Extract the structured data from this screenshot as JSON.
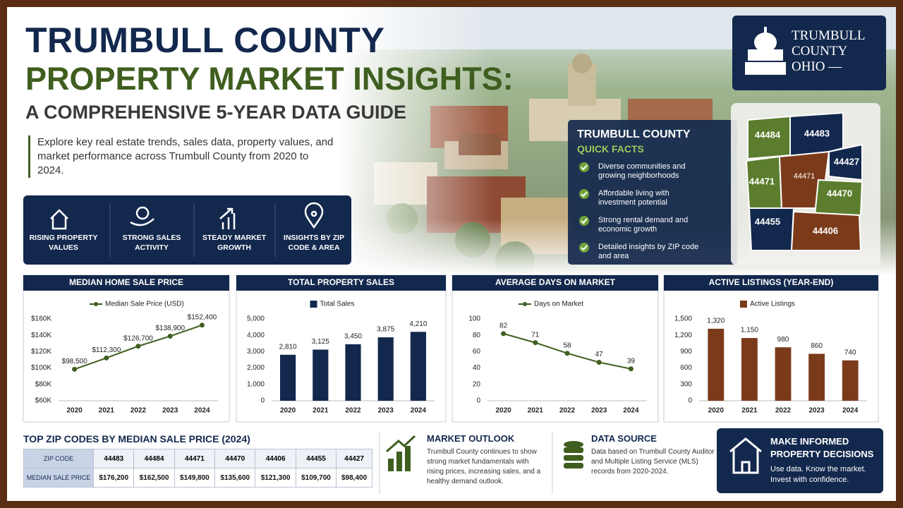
{
  "header": {
    "title_line1": "TRUMBULL COUNTY",
    "title_line2": "PROPERTY MARKET INSIGHTS:",
    "subtitle": "A COMPREHENSIVE 5-YEAR DATA GUIDE",
    "intro": "Explore key real estate trends, sales data, property values, and market performance across Trumbull County from 2020 to 2024."
  },
  "logo": {
    "line1": "TRUMBULL",
    "line2": "COUNTY",
    "line3": "OHIO —"
  },
  "features": [
    "RISING PROPERTY VALUES",
    "STRONG SALES ACTIVITY",
    "STEADY MARKET GROWTH",
    "INSIGHTS BY ZIP CODE & AREA"
  ],
  "quick_facts": {
    "title": "TRUMBULL COUNTY",
    "subtitle": "QUICK FACTS",
    "items": [
      "Diverse communities and growing neighborhoods",
      "Affordable living with investment potential",
      "Strong rental demand and economic growth",
      "Detailed insights by ZIP code and area"
    ]
  },
  "map": {
    "zip_labels": [
      "44484",
      "44483",
      "44427",
      "44471",
      "44471",
      "44470",
      "44455",
      "44406"
    ]
  },
  "chart_data": [
    {
      "type": "line",
      "title": "MEDIAN HOME SALE PRICE",
      "categories": [
        "2020",
        "2021",
        "2022",
        "2023",
        "2024"
      ],
      "series": [
        {
          "name": "Median Sale Price (USD)",
          "color": "#3f5e1f",
          "values": [
            98500,
            112300,
            126700,
            138900,
            152400
          ],
          "value_labels": [
            "$98,500",
            "$112,300",
            "$126,700",
            "$138,900",
            "$152,400"
          ]
        }
      ],
      "ylim": [
        60000,
        160000
      ],
      "yticks": [
        {
          "value": 60000,
          "label": "$60K"
        },
        {
          "value": 80000,
          "label": "$80K"
        },
        {
          "value": 100000,
          "label": "$100K"
        },
        {
          "value": 120000,
          "label": "$120K"
        },
        {
          "value": 140000,
          "label": "$140K"
        },
        {
          "value": 160000,
          "label": "$160K"
        }
      ]
    },
    {
      "type": "bar",
      "title": "TOTAL PROPERTY SALES",
      "categories": [
        "2020",
        "2021",
        "2022",
        "2023",
        "2024"
      ],
      "series": [
        {
          "name": "Total Sales",
          "color": "#13284d",
          "values": [
            2810,
            3125,
            3450,
            3875,
            4210
          ],
          "value_labels": [
            "2,810",
            "3,125",
            "3,450",
            "3,875",
            "4,210"
          ]
        }
      ],
      "ylim": [
        0,
        5000
      ],
      "yticks": [
        0,
        {
          "value": 1000,
          "label": "1,000"
        },
        {
          "value": 2000,
          "label": "2,000"
        },
        {
          "value": 3000,
          "label": "3,000"
        },
        {
          "value": 4000,
          "label": "4,000"
        },
        {
          "value": 5000,
          "label": "5,000"
        }
      ]
    },
    {
      "type": "line",
      "title": "AVERAGE DAYS ON MARKET",
      "categories": [
        "2020",
        "2021",
        "2022",
        "2023",
        "2024"
      ],
      "series": [
        {
          "name": "Days on Market",
          "color": "#3f5e1f",
          "values": [
            82,
            71,
            58,
            47,
            39
          ]
        }
      ],
      "ylim": [
        0,
        100
      ],
      "yticks": [
        0,
        20,
        40,
        60,
        80,
        100
      ]
    },
    {
      "type": "bar",
      "title": "ACTIVE LISTINGS (YEAR-END)",
      "categories": [
        "2020",
        "2021",
        "2022",
        "2023",
        "2024"
      ],
      "series": [
        {
          "name": "Active Listings",
          "color": "#7b3b1a",
          "values": [
            1320,
            1150,
            980,
            860,
            740
          ],
          "value_labels": [
            "1,320",
            "1,150",
            "980",
            "860",
            "740"
          ]
        }
      ],
      "ylim": [
        0,
        1500
      ],
      "yticks": [
        0,
        300,
        600,
        900,
        {
          "value": 1200,
          "label": "1,200"
        },
        {
          "value": 1500,
          "label": "1,500"
        }
      ]
    }
  ],
  "zip_table": {
    "title": "TOP ZIP CODES BY MEDIAN SALE PRICE (2024)",
    "rows": [
      [
        "ZIP CODE",
        "44483",
        "44484",
        "44471",
        "44470",
        "44406",
        "44455",
        "44427"
      ],
      [
        "MEDIAN SALE PRICE",
        "$176,200",
        "$162,500",
        "$149,800",
        "$135,600",
        "$121,300",
        "$109,700",
        "$98,400"
      ]
    ]
  },
  "market_outlook": {
    "title": "MARKET OUTLOOK",
    "text": "Trumbull County continues to show strong market fundamentals with rising prices, increasing sales, and a healthy demand outlook."
  },
  "data_source": {
    "title": "DATA SOURCE",
    "text": "Data based on Trumbull County Auditor and Multiple Listing Service (MLS) records from 2020-2024."
  },
  "call_to_action": {
    "title": "MAKE INFORMED PROPERTY DECISIONS",
    "text": "Use data. Know the market. Invest with confidence."
  }
}
